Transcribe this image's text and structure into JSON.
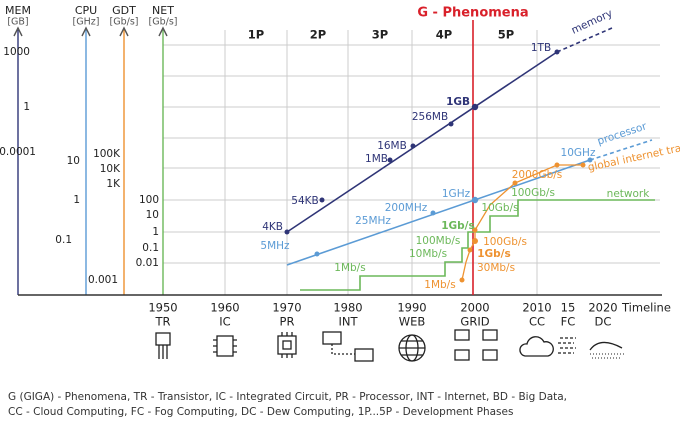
{
  "title": "G - Phenomena",
  "axes": [
    {
      "name": "MEM",
      "unit": "[GB]",
      "ticks": [
        "1000",
        "1",
        "0.0001"
      ]
    },
    {
      "name": "CPU",
      "unit": "[GHz]",
      "ticks": [
        "10",
        "1",
        "0.1",
        "0.001"
      ]
    },
    {
      "name": "GDT",
      "unit": "[Gb/s]",
      "ticks": [
        "100K",
        "10K",
        "1K"
      ]
    },
    {
      "name": "NET",
      "unit": "[Gb/s]",
      "ticks": [
        "100",
        "10",
        "1",
        "0.1",
        "0.01"
      ]
    }
  ],
  "phases": [
    "1P",
    "2P",
    "3P",
    "4P",
    "5P"
  ],
  "series": [
    {
      "name": "memory",
      "labels": [
        "4KB",
        "54KB",
        "1MB",
        "16MB",
        "256MB",
        "1GB",
        "1TB"
      ]
    },
    {
      "name": "processor",
      "labels": [
        "5MHz",
        "25MHz",
        "200MHz",
        "1GHz",
        "10GHz"
      ]
    },
    {
      "name": "global internet traffic",
      "labels": [
        "1Mb/s",
        "30Mb/s",
        "1Gb/s",
        "100Gb/s",
        "2000Gb/s"
      ]
    },
    {
      "name": "network",
      "labels": [
        "1Mb/s",
        "10Mb/s",
        "100Mb/s",
        "1Gb/s",
        "10Gb/s",
        "100Gb/s"
      ]
    }
  ],
  "timeline": {
    "label": "Timeline",
    "years": [
      "1950",
      "1960",
      "1970",
      "1980",
      "1990",
      "2000",
      "2010",
      "15",
      "2020"
    ],
    "eras": [
      "TR",
      "IC",
      "PR",
      "INT",
      "WEB",
      "GRID",
      "CC",
      "FC",
      "DC"
    ]
  },
  "footer": [
    "G (GIGA) - Phenomena, TR - Transistor, IC - Integrated Circuit, PR - Processor, INT - Internet, BD - Big Data,",
    "CC - Cloud Computing, FC - Fog Computing, DC - Dew Computing, 1P...5P - Development Phases"
  ]
}
